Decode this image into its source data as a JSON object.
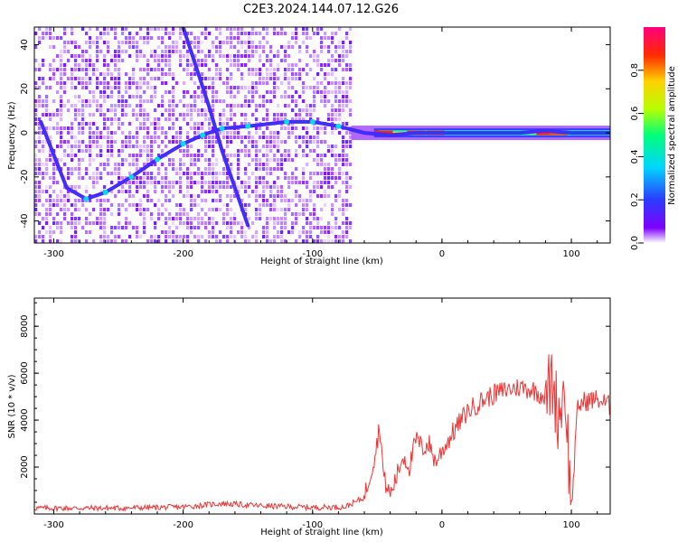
{
  "title": "C2E3.2024.144.07.12.G26",
  "colors": {
    "frame": "#000000",
    "snr_line": "#ee3333",
    "spectral_bg": "#ffffff"
  },
  "chart_data": [
    {
      "type": "heatmap",
      "xlabel": "Height of straight line (km)",
      "ylabel": "Frequency (Hz)",
      "xlim": [
        -315,
        130
      ],
      "ylim": [
        -50,
        48
      ],
      "x_ticks": [
        -300,
        -200,
        -100,
        0,
        100
      ],
      "y_ticks": [
        -40,
        -20,
        0,
        20,
        40
      ],
      "colorbar": {
        "label": "Normalized spectral amplitude",
        "range": [
          0.0,
          1.0
        ],
        "ticks": [
          0.0,
          0.2,
          0.4,
          0.6,
          0.8
        ],
        "colormap": "rainbow"
      },
      "noise_region_x": [
        -315,
        -70
      ],
      "carrier_region_x": [
        -70,
        130
      ],
      "ridges": [
        {
          "name": "",
          "x": [
            -310,
            -290,
            -275,
            -260,
            -240,
            -220,
            -200,
            -185,
            -170,
            -150,
            -120,
            -100,
            -80,
            -60,
            -40,
            -20,
            0,
            20,
            40,
            60,
            80,
            100,
            130
          ],
          "y": [
            5,
            -25,
            -30,
            -27,
            -20,
            -12,
            -5,
            -1,
            2,
            3,
            5,
            5,
            3,
            0,
            -1,
            0,
            0,
            0,
            0,
            0,
            1,
            0,
            0
          ]
        },
        {
          "name": "",
          "x": [
            -200,
            -190,
            -180,
            -170,
            -160,
            -150
          ],
          "y": [
            48,
            30,
            12,
            -8,
            -25,
            -42
          ]
        }
      ]
    },
    {
      "type": "line",
      "xlabel": "Height of straight line (km)",
      "ylabel": "SNR (10 * v/v)",
      "xlim": [
        -315,
        130
      ],
      "ylim": [
        0,
        9200
      ],
      "x_ticks": [
        -300,
        -200,
        -100,
        0,
        100
      ],
      "y_ticks": [
        2000,
        4000,
        6000,
        8000
      ],
      "series": [
        {
          "name": "",
          "x": [
            -315,
            -250,
            -200,
            -170,
            -140,
            -100,
            -75,
            -60,
            -52,
            -48,
            -45,
            -40,
            -35,
            -30,
            -25,
            -20,
            -15,
            -10,
            -5,
            0,
            10,
            20,
            30,
            40,
            50,
            60,
            70,
            80,
            85,
            90,
            95,
            100,
            105,
            110,
            120,
            130
          ],
          "y": [
            250,
            250,
            300,
            450,
            350,
            280,
            300,
            700,
            2500,
            3800,
            1500,
            800,
            1600,
            2500,
            2000,
            3200,
            2800,
            3000,
            2200,
            2700,
            3600,
            4400,
            4800,
            5100,
            5300,
            5400,
            5300,
            5000,
            5700,
            4200,
            5500,
            200,
            4600,
            4800,
            4900,
            4600
          ]
        }
      ]
    }
  ]
}
